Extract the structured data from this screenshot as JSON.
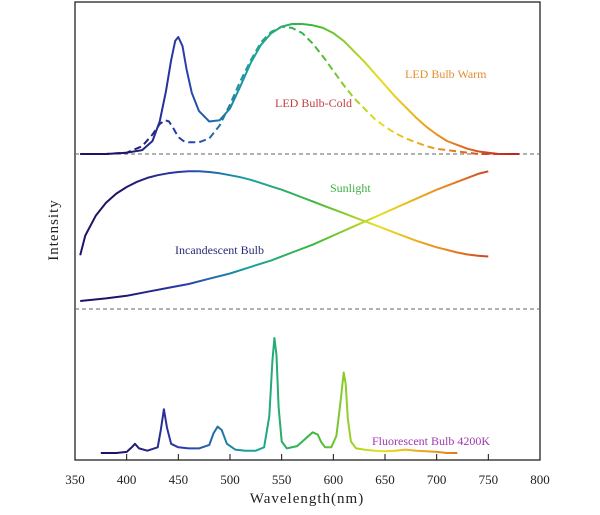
{
  "chart_data": {
    "type": "line",
    "xlabel": "Wavelength(nm)",
    "ylabel": "Intensity",
    "xlim": [
      350,
      800
    ],
    "x_ticks": [
      "350",
      "400",
      "450",
      "500",
      "550",
      "600",
      "650",
      "700",
      "750",
      "800"
    ],
    "y_ticks": false,
    "grid": false,
    "gradient_colors": [
      "#1c1466",
      "#2b3bb0",
      "#1aa0a0",
      "#3cb83a",
      "#e8e020",
      "#e88a20",
      "#c02424"
    ],
    "panels": [
      {
        "name": "top",
        "series": [
          {
            "name": "LED Bulb Warm",
            "label_color": "#e09030",
            "style": "solid",
            "x": [
              355,
              380,
              400,
              415,
              425,
              432,
              438,
              443,
              447,
              450,
              454,
              458,
              463,
              470,
              480,
              490,
              500,
              510,
              520,
              530,
              540,
              550,
              560,
              570,
              580,
              590,
              600,
              610,
              620,
              630,
              640,
              650,
              660,
              670,
              680,
              690,
              700,
              710,
              720,
              730,
              740,
              750,
              760,
              770,
              780
            ],
            "y": [
              0.0,
              0.0,
              0.01,
              0.03,
              0.1,
              0.25,
              0.48,
              0.72,
              0.87,
              0.9,
              0.83,
              0.65,
              0.47,
              0.33,
              0.25,
              0.26,
              0.35,
              0.52,
              0.7,
              0.84,
              0.93,
              0.98,
              1.0,
              1.0,
              0.99,
              0.97,
              0.93,
              0.87,
              0.79,
              0.71,
              0.62,
              0.53,
              0.44,
              0.36,
              0.28,
              0.21,
              0.15,
              0.1,
              0.07,
              0.04,
              0.02,
              0.01,
              0.0,
              0.0,
              0.0
            ]
          },
          {
            "name": "LED Bulb-Cold",
            "label_color": "#c04040",
            "style": "dashed",
            "x": [
              355,
              380,
              400,
              415,
              425,
              432,
              437,
              441,
              445,
              450,
              455,
              460,
              470,
              480,
              490,
              500,
              510,
              520,
              530,
              540,
              550,
              560,
              570,
              580,
              590,
              600,
              610,
              620,
              630,
              640,
              650,
              660,
              670,
              680,
              690,
              700,
              710,
              720,
              730,
              740,
              750,
              760,
              770
            ],
            "y": [
              0.0,
              0.0,
              0.01,
              0.06,
              0.15,
              0.23,
              0.26,
              0.25,
              0.2,
              0.13,
              0.1,
              0.09,
              0.09,
              0.12,
              0.22,
              0.38,
              0.56,
              0.72,
              0.86,
              0.94,
              0.98,
              0.97,
              0.93,
              0.85,
              0.75,
              0.64,
              0.53,
              0.43,
              0.35,
              0.27,
              0.21,
              0.16,
              0.12,
              0.09,
              0.06,
              0.04,
              0.03,
              0.02,
              0.01,
              0.0,
              0.0,
              0.0,
              0.0
            ]
          }
        ]
      },
      {
        "name": "middle",
        "series": [
          {
            "name": "Sunlight",
            "label_color": "#3cb040",
            "style": "solid",
            "x": [
              355,
              360,
              370,
              380,
              390,
              400,
              410,
              420,
              430,
              440,
              450,
              460,
              470,
              480,
              490,
              500,
              510,
              520,
              530,
              540,
              550,
              560,
              570,
              580,
              590,
              600,
              610,
              620,
              630,
              640,
              650,
              660,
              670,
              680,
              690,
              700,
              710,
              720,
              730,
              740,
              750
            ],
            "y": [
              0.35,
              0.5,
              0.65,
              0.75,
              0.82,
              0.87,
              0.91,
              0.94,
              0.96,
              0.975,
              0.985,
              0.99,
              0.99,
              0.985,
              0.975,
              0.96,
              0.945,
              0.925,
              0.9,
              0.875,
              0.85,
              0.82,
              0.79,
              0.76,
              0.73,
              0.7,
              0.67,
              0.64,
              0.61,
              0.58,
              0.55,
              0.52,
              0.49,
              0.46,
              0.435,
              0.41,
              0.39,
              0.37,
              0.355,
              0.345,
              0.34
            ]
          },
          {
            "name": "Incandescent Bulb",
            "label_color": "#2a2a7a",
            "style": "solid",
            "x": [
              355,
              380,
              400,
              420,
              440,
              460,
              480,
              500,
              520,
              540,
              560,
              580,
              600,
              620,
              640,
              660,
              680,
              700,
              720,
              740,
              750
            ],
            "y": [
              0.0,
              0.02,
              0.04,
              0.07,
              0.1,
              0.13,
              0.17,
              0.21,
              0.26,
              0.31,
              0.37,
              0.43,
              0.5,
              0.57,
              0.64,
              0.71,
              0.78,
              0.85,
              0.91,
              0.97,
              0.99
            ]
          }
        ]
      },
      {
        "name": "bottom",
        "series": [
          {
            "name": "Fluorescent Bulb 4200K",
            "label_color": "#a03ab0",
            "style": "solid",
            "x": [
              375,
              390,
              400,
              405,
              408,
              412,
              420,
              430,
              433,
              436,
              439,
              443,
              450,
              460,
              470,
              480,
              484,
              488,
              492,
              497,
              505,
              515,
              525,
              533,
              538,
              541,
              543,
              545,
              547,
              550,
              555,
              565,
              575,
              580,
              585,
              588,
              592,
              598,
              603,
              607,
              610,
              612,
              614,
              617,
              622,
              630,
              640,
              650,
              660,
              670,
              680,
              690,
              700,
              710,
              720
            ],
            "y": [
              0.0,
              0.0,
              0.01,
              0.05,
              0.08,
              0.04,
              0.02,
              0.05,
              0.2,
              0.38,
              0.22,
              0.08,
              0.05,
              0.04,
              0.04,
              0.07,
              0.17,
              0.23,
              0.2,
              0.08,
              0.03,
              0.02,
              0.02,
              0.05,
              0.32,
              0.8,
              1.0,
              0.85,
              0.4,
              0.1,
              0.04,
              0.06,
              0.14,
              0.18,
              0.16,
              0.1,
              0.05,
              0.05,
              0.15,
              0.45,
              0.7,
              0.6,
              0.3,
              0.1,
              0.04,
              0.03,
              0.02,
              0.015,
              0.02,
              0.03,
              0.02,
              0.015,
              0.01,
              0.0,
              0.0
            ]
          }
        ]
      }
    ]
  }
}
